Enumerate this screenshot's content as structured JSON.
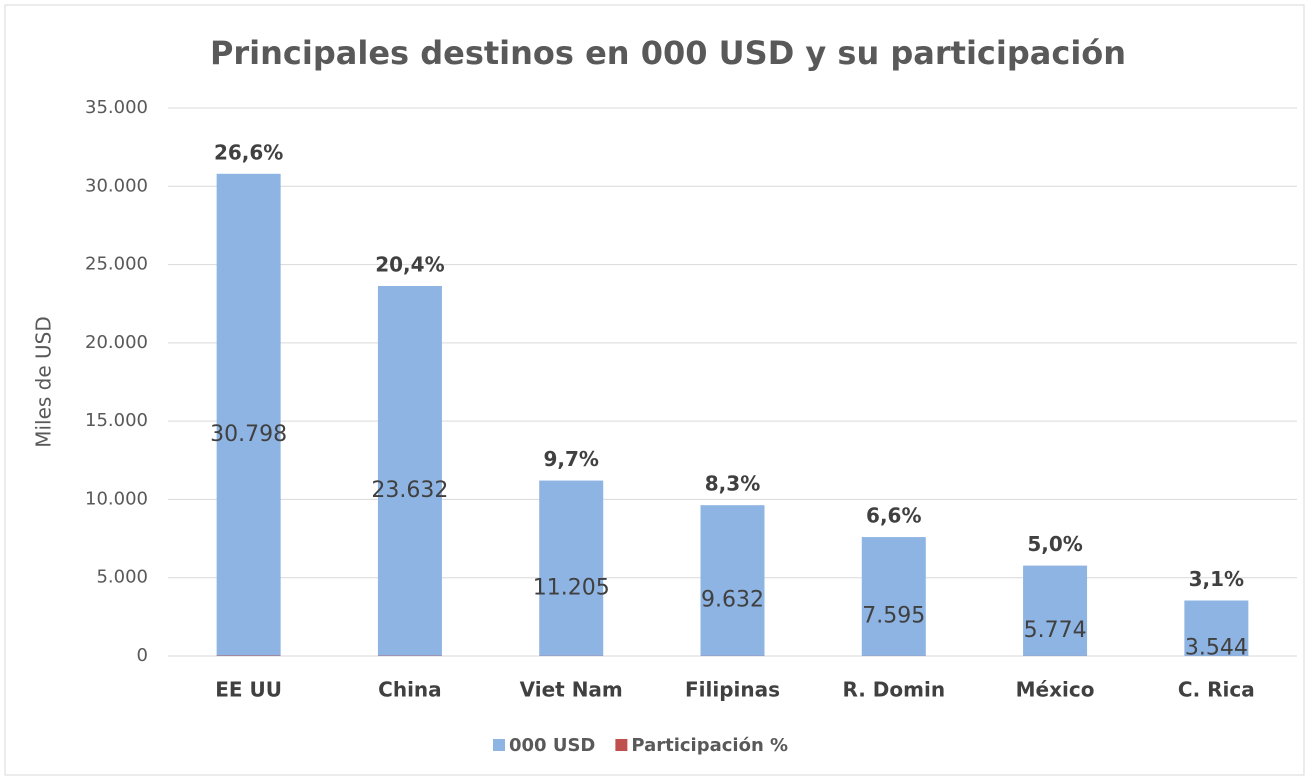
{
  "chart_data": {
    "type": "bar",
    "title": "Principales destinos en 000 USD y su participación",
    "ylabel": "Miles de USD",
    "categories": [
      "EE UU",
      "China",
      "Viet Nam",
      "Filipinas",
      "R. Domin",
      "México",
      "C. Rica"
    ],
    "series": [
      {
        "name": "000 USD",
        "color": "#8eb4e3",
        "values": [
          30798,
          23632,
          11205,
          9632,
          7595,
          5774,
          3544
        ],
        "value_labels": [
          "30.798",
          "23.632",
          "11.205",
          "9.632",
          "7.595",
          "5.774",
          "3.544"
        ]
      },
      {
        "name": "Participación %",
        "color": "#c0504d",
        "values": [
          26.6,
          20.4,
          9.7,
          8.3,
          6.6,
          5.0,
          3.1
        ],
        "value_labels": [
          "26,6%",
          "20,4%",
          "9,7%",
          "8,3%",
          "6,6%",
          "5,0%",
          "3,1%"
        ]
      }
    ],
    "ylim": [
      0,
      35000
    ],
    "yticks": [
      0,
      {
        "value": 5000,
        "label": "5.000"
      },
      {
        "value": 10000,
        "label": "10.000"
      },
      {
        "value": 15000,
        "label": "15.000"
      },
      {
        "value": 20000,
        "label": "20.000"
      },
      {
        "value": 25000,
        "label": "25.000"
      },
      {
        "value": 30000,
        "label": "30.000"
      },
      {
        "value": 35000,
        "label": "35.000"
      }
    ],
    "grid": true,
    "legend": "bottom"
  }
}
